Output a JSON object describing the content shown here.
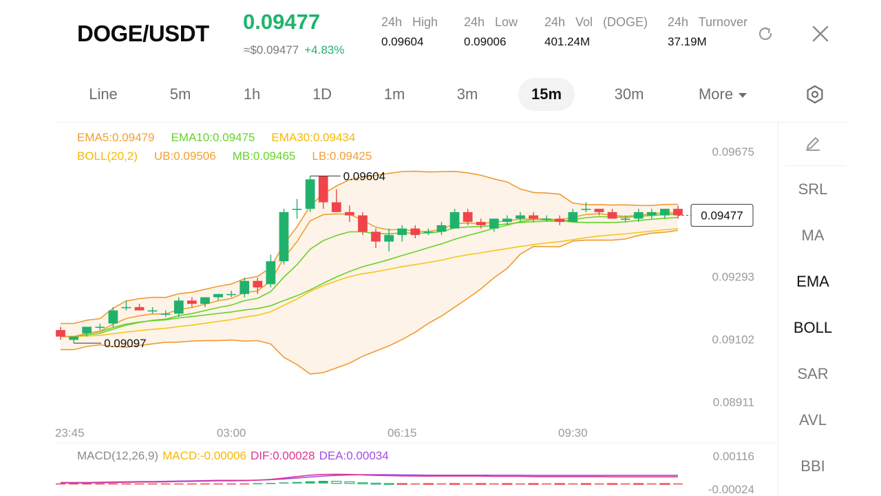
{
  "header": {
    "symbol": "DOGE/USDT",
    "last_price": "0.09477",
    "usd_price": "≈$0.09477",
    "change_pct": "+4.83%",
    "stats": [
      {
        "label": "24h High",
        "value": "0.09604"
      },
      {
        "label": "24h Low",
        "value": "0.09006"
      },
      {
        "label": "24h Vol (DOGE)",
        "value": "401.24M"
      },
      {
        "label": "24h Turnover",
        "value": "37.19M"
      }
    ],
    "refresh_icon": "refresh-icon",
    "close_icon": "close-icon"
  },
  "tabs": {
    "items": [
      "Line",
      "5m",
      "1h",
      "1D",
      "1m",
      "3m",
      "15m",
      "30m",
      "More"
    ],
    "active": "15m",
    "settings_icon": "hexagon-settings-icon"
  },
  "legend": {
    "ema5": "EMA5:0.09479",
    "ema10": "EMA10:0.09475",
    "ema30": "EMA30:0.09434",
    "boll": "BOLL(20,2)",
    "ub": "UB:0.09506",
    "mb": "MB:0.09465",
    "lb": "LB:0.09425"
  },
  "macd_legend": {
    "name": "MACD(12,26,9)",
    "macd": "MACD:-0.00006",
    "dif": "DIF:0.00028",
    "dea": "DEA:0.00034"
  },
  "price_axis": [
    "0.09675",
    "0.09293",
    "0.09102",
    "0.08911"
  ],
  "macd_axis": [
    "0.00116",
    "-0.00024"
  ],
  "time_axis": [
    "23:45",
    "03:00",
    "06:15",
    "09:30"
  ],
  "annotations": {
    "high": "0.09604",
    "low": "0.09097",
    "current": "0.09477"
  },
  "side_panel": {
    "pen_icon": "pencil-icon",
    "items": [
      "SRL",
      "MA",
      "EMA",
      "BOLL",
      "SAR",
      "AVL",
      "BBI"
    ],
    "active": [
      "EMA",
      "BOLL"
    ]
  },
  "colors": {
    "up": "#20b26c",
    "down": "#ef454a",
    "ema5": "#f0a030",
    "ema10": "#67d22a",
    "ema30": "#f5c518",
    "boll": "#f09a30",
    "dif": "#e0338f",
    "dea": "#a14de0"
  },
  "chart_data": {
    "type": "candlestick",
    "interval": "15m",
    "candles": [
      {
        "o": 0.0913,
        "h": 0.0914,
        "l": 0.091,
        "c": 0.0911
      },
      {
        "o": 0.091,
        "h": 0.0911,
        "l": 0.0909,
        "c": 0.0911
      },
      {
        "o": 0.0912,
        "h": 0.0914,
        "l": 0.0911,
        "c": 0.0914
      },
      {
        "o": 0.0914,
        "h": 0.0915,
        "l": 0.0913,
        "c": 0.0914
      },
      {
        "o": 0.0915,
        "h": 0.092,
        "l": 0.0914,
        "c": 0.0919
      },
      {
        "o": 0.092,
        "h": 0.0922,
        "l": 0.0919,
        "c": 0.092
      },
      {
        "o": 0.092,
        "h": 0.0921,
        "l": 0.0919,
        "c": 0.0919
      },
      {
        "o": 0.0919,
        "h": 0.092,
        "l": 0.0918,
        "c": 0.0919
      },
      {
        "o": 0.0918,
        "h": 0.0919,
        "l": 0.0917,
        "c": 0.0918
      },
      {
        "o": 0.0918,
        "h": 0.0923,
        "l": 0.0917,
        "c": 0.0922
      },
      {
        "o": 0.0922,
        "h": 0.0923,
        "l": 0.092,
        "c": 0.0921
      },
      {
        "o": 0.0921,
        "h": 0.0923,
        "l": 0.092,
        "c": 0.0923
      },
      {
        "o": 0.0923,
        "h": 0.0924,
        "l": 0.0922,
        "c": 0.0924
      },
      {
        "o": 0.0924,
        "h": 0.0925,
        "l": 0.0923,
        "c": 0.0924
      },
      {
        "o": 0.0924,
        "h": 0.0929,
        "l": 0.0923,
        "c": 0.0928
      },
      {
        "o": 0.0928,
        "h": 0.0929,
        "l": 0.0924,
        "c": 0.0926
      },
      {
        "o": 0.0927,
        "h": 0.0936,
        "l": 0.0926,
        "c": 0.0934
      },
      {
        "o": 0.0934,
        "h": 0.095,
        "l": 0.0933,
        "c": 0.0949
      },
      {
        "o": 0.095,
        "h": 0.0953,
        "l": 0.0947,
        "c": 0.095
      },
      {
        "o": 0.095,
        "h": 0.096,
        "l": 0.0949,
        "c": 0.0959
      },
      {
        "o": 0.096,
        "h": 0.096,
        "l": 0.095,
        "c": 0.0952
      },
      {
        "o": 0.0952,
        "h": 0.0956,
        "l": 0.0949,
        "c": 0.0949
      },
      {
        "o": 0.0949,
        "h": 0.0951,
        "l": 0.0946,
        "c": 0.0948
      },
      {
        "o": 0.0948,
        "h": 0.0949,
        "l": 0.0942,
        "c": 0.0943
      },
      {
        "o": 0.0943,
        "h": 0.0944,
        "l": 0.0938,
        "c": 0.094
      },
      {
        "o": 0.094,
        "h": 0.0944,
        "l": 0.0937,
        "c": 0.0942
      },
      {
        "o": 0.0942,
        "h": 0.0945,
        "l": 0.094,
        "c": 0.0944
      },
      {
        "o": 0.0944,
        "h": 0.0945,
        "l": 0.0941,
        "c": 0.0942
      },
      {
        "o": 0.0943,
        "h": 0.0944,
        "l": 0.0942,
        "c": 0.0943
      },
      {
        "o": 0.0943,
        "h": 0.0946,
        "l": 0.0942,
        "c": 0.0945
      },
      {
        "o": 0.0944,
        "h": 0.095,
        "l": 0.0944,
        "c": 0.0949
      },
      {
        "o": 0.0949,
        "h": 0.095,
        "l": 0.0945,
        "c": 0.0946
      },
      {
        "o": 0.0946,
        "h": 0.0947,
        "l": 0.0944,
        "c": 0.0945
      },
      {
        "o": 0.0944,
        "h": 0.0947,
        "l": 0.0943,
        "c": 0.0947
      },
      {
        "o": 0.0946,
        "h": 0.0948,
        "l": 0.0945,
        "c": 0.0947
      },
      {
        "o": 0.0947,
        "h": 0.0949,
        "l": 0.0946,
        "c": 0.0948
      },
      {
        "o": 0.0948,
        "h": 0.0949,
        "l": 0.0946,
        "c": 0.0947
      },
      {
        "o": 0.0947,
        "h": 0.0948,
        "l": 0.0946,
        "c": 0.0947
      },
      {
        "o": 0.0947,
        "h": 0.0948,
        "l": 0.0945,
        "c": 0.0946
      },
      {
        "o": 0.0946,
        "h": 0.095,
        "l": 0.0946,
        "c": 0.0949
      },
      {
        "o": 0.095,
        "h": 0.0952,
        "l": 0.0949,
        "c": 0.095
      },
      {
        "o": 0.095,
        "h": 0.095,
        "l": 0.0948,
        "c": 0.0949
      },
      {
        "o": 0.0949,
        "h": 0.095,
        "l": 0.0947,
        "c": 0.0947
      },
      {
        "o": 0.0947,
        "h": 0.0948,
        "l": 0.0946,
        "c": 0.0947
      },
      {
        "o": 0.0947,
        "h": 0.095,
        "l": 0.0946,
        "c": 0.0949
      },
      {
        "o": 0.0948,
        "h": 0.095,
        "l": 0.0947,
        "c": 0.0949
      },
      {
        "o": 0.0948,
        "h": 0.095,
        "l": 0.0947,
        "c": 0.095
      },
      {
        "o": 0.095,
        "h": 0.0951,
        "l": 0.0947,
        "c": 0.0948
      }
    ],
    "macd_hist": [
      -2e-05,
      -2e-05,
      -2e-05,
      -2e-05,
      -2e-05,
      -2e-05,
      -2e-05,
      -2e-05,
      -1e-05,
      -2e-05,
      -1e-05,
      -1e-05,
      -1e-05,
      -1e-05,
      -1e-05,
      1e-05,
      2e-05,
      4e-05,
      6e-05,
      9e-05,
      0.00011,
      9e-05,
      7e-05,
      3e-05,
      1e-05,
      0.0,
      -1e-05,
      -2e-05,
      -2e-05,
      -2e-05,
      -2e-05,
      -3e-05,
      -3e-05,
      -3e-05,
      -3e-05,
      -3e-05,
      -3e-05,
      -3e-05,
      -3e-05,
      -3e-05,
      -3e-05,
      -3e-05,
      -3e-05,
      -3e-05,
      -3e-05,
      -3e-05,
      -3e-05,
      -3e-05
    ],
    "dif": [
      2e-05,
      2e-05,
      2e-05,
      3e-05,
      4e-05,
      5e-05,
      6e-05,
      6e-05,
      7e-05,
      8e-05,
      9e-05,
      0.0001,
      0.00011,
      0.00011,
      0.00012,
      0.00014,
      0.00017,
      0.00023,
      0.00029,
      0.00035,
      0.00038,
      0.00039,
      0.00038,
      0.00036,
      0.00034,
      0.00033,
      0.00032,
      0.00031,
      0.00031,
      0.00031,
      0.00031,
      0.00031,
      0.00031,
      0.0003,
      0.0003,
      0.0003,
      0.00029,
      0.00029,
      0.00029,
      0.00029,
      0.00029,
      0.00029,
      0.00028,
      0.00028,
      0.00028,
      0.00028,
      0.00028,
      0.00028
    ],
    "dea": [
      4e-05,
      4e-05,
      4e-05,
      5e-05,
      6e-05,
      7e-05,
      8e-05,
      8e-05,
      9e-05,
      0.0001,
      0.00011,
      0.00012,
      0.00013,
      0.00013,
      0.00013,
      0.00014,
      0.00016,
      0.00019,
      0.00023,
      0.00027,
      0.00031,
      0.00034,
      0.00036,
      0.00037,
      0.00037,
      0.00037,
      0.00036,
      0.00036,
      0.00035,
      0.00035,
      0.00035,
      0.00035,
      0.00035,
      0.00035,
      0.00035,
      0.00035,
      0.00034,
      0.00034,
      0.00034,
      0.00034,
      0.00034,
      0.00034,
      0.00034,
      0.00034,
      0.00034,
      0.00034,
      0.00034,
      0.00034
    ],
    "y_range": [
      0.0888,
      0.097
    ],
    "macd_range": [
      -0.00024,
      0.00116
    ]
  }
}
